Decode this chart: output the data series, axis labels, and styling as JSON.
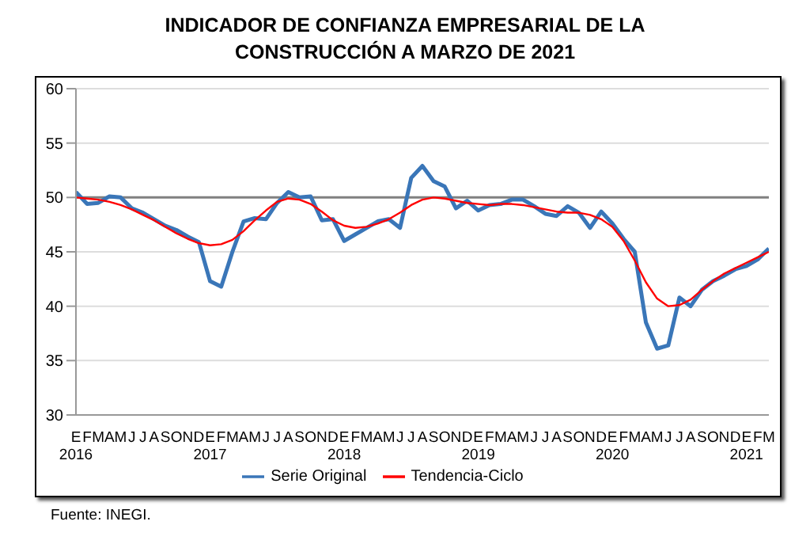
{
  "chart_data": {
    "type": "line",
    "title": "INDICADOR DE CONFIANZA EMPRESARIAL DE LA CONSTRUCCIÓN A MARZO DE 2021",
    "categories": [
      "E\n2016",
      "F",
      "M",
      "A",
      "M",
      "J",
      "J",
      "A",
      "S",
      "O",
      "N",
      "D",
      "E\n2017",
      "F",
      "M",
      "A",
      "M",
      "J",
      "J",
      "A",
      "S",
      "O",
      "N",
      "D",
      "E\n2018",
      "F",
      "M",
      "A",
      "M",
      "J",
      "J",
      "A",
      "S",
      "O",
      "N",
      "D",
      "E\n2019",
      "F",
      "M",
      "A",
      "M",
      "J",
      "J",
      "A",
      "S",
      "O",
      "N",
      "D",
      "E\n2020",
      "F",
      "M",
      "A",
      "M",
      "J",
      "J",
      "A",
      "S",
      "O",
      "N",
      "D",
      "E\n2021",
      "F",
      "M"
    ],
    "series": [
      {
        "name": "Serie Original",
        "color": "#3a76b8",
        "values": [
          50.5,
          49.4,
          49.5,
          50.1,
          50.0,
          49.0,
          48.6,
          48.0,
          47.4,
          47.0,
          46.4,
          45.9,
          42.3,
          41.8,
          45.0,
          47.8,
          48.1,
          48.0,
          49.5,
          50.5,
          50.0,
          50.1,
          47.9,
          48.0,
          46.0,
          46.6,
          47.2,
          47.8,
          48.0,
          47.2,
          51.8,
          52.9,
          51.5,
          51.0,
          49.0,
          49.7,
          48.8,
          49.3,
          49.4,
          49.8,
          49.8,
          49.2,
          48.5,
          48.3,
          49.2,
          48.6,
          47.2,
          48.7,
          47.6,
          46.2,
          45.0,
          38.5,
          36.1,
          36.4,
          40.8,
          40.0,
          41.5,
          42.3,
          42.8,
          43.4,
          43.7,
          44.3,
          45.3
        ]
      },
      {
        "name": "Tendencia-Ciclo",
        "color": "#ff0000",
        "values": [
          50.0,
          49.9,
          49.8,
          49.6,
          49.3,
          48.9,
          48.4,
          47.9,
          47.3,
          46.7,
          46.2,
          45.8,
          45.6,
          45.7,
          46.1,
          46.9,
          47.9,
          48.8,
          49.6,
          49.9,
          49.8,
          49.4,
          48.7,
          47.9,
          47.4,
          47.2,
          47.3,
          47.6,
          48.0,
          48.6,
          49.3,
          49.8,
          50.0,
          49.9,
          49.7,
          49.5,
          49.4,
          49.3,
          49.4,
          49.4,
          49.3,
          49.1,
          48.9,
          48.7,
          48.6,
          48.6,
          48.4,
          48.0,
          47.3,
          46.0,
          44.2,
          42.2,
          40.7,
          40.0,
          40.1,
          40.6,
          41.5,
          42.3,
          43.0,
          43.5,
          44.0,
          44.5,
          45.0
        ]
      }
    ],
    "ylim": [
      30,
      60
    ],
    "yticks": [
      30,
      35,
      40,
      45,
      50,
      55,
      60
    ],
    "grid": "y",
    "legend": "bottom",
    "marker": "none",
    "line_style": "solid",
    "ref_lines": [
      {
        "axis": "y",
        "value": 50,
        "color": "#808080"
      }
    ],
    "annotations": [
      "Fuente: INEGI."
    ]
  }
}
